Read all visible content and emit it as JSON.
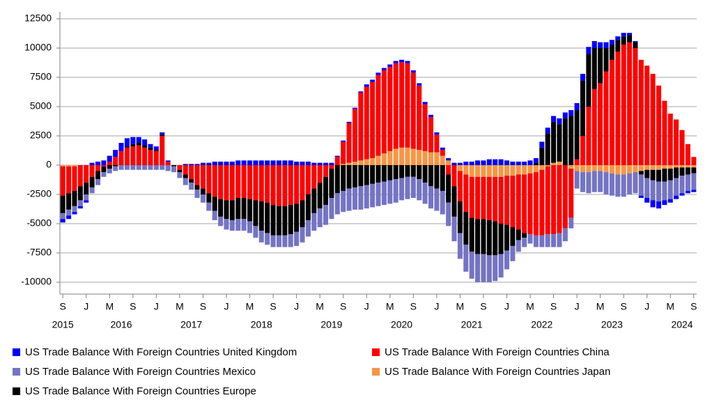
{
  "chart_data": {
    "type": "stacked-bar",
    "x": [
      "2015-09",
      "2015-10",
      "2015-11",
      "2015-12",
      "2016-01",
      "2016-02",
      "2016-03",
      "2016-04",
      "2016-05",
      "2016-06",
      "2016-07",
      "2016-08",
      "2016-09",
      "2016-10",
      "2016-11",
      "2016-12",
      "2017-01",
      "2017-02",
      "2017-03",
      "2017-04",
      "2017-05",
      "2017-06",
      "2017-07",
      "2017-08",
      "2017-09",
      "2017-10",
      "2017-11",
      "2017-12",
      "2018-01",
      "2018-02",
      "2018-03",
      "2018-04",
      "2018-05",
      "2018-06",
      "2018-07",
      "2018-08",
      "2018-09",
      "2018-10",
      "2018-11",
      "2018-12",
      "2019-01",
      "2019-02",
      "2019-03",
      "2019-04",
      "2019-05",
      "2019-06",
      "2019-07",
      "2019-08",
      "2019-09",
      "2019-10",
      "2019-11",
      "2019-12",
      "2020-01",
      "2020-02",
      "2020-03",
      "2020-04",
      "2020-05",
      "2020-06",
      "2020-07",
      "2020-08",
      "2020-09",
      "2020-10",
      "2020-11",
      "2020-12",
      "2021-01",
      "2021-02",
      "2021-03",
      "2021-04",
      "2021-05",
      "2021-06",
      "2021-07",
      "2021-08",
      "2021-09",
      "2021-10",
      "2021-11",
      "2021-12",
      "2022-01",
      "2022-02",
      "2022-03",
      "2022-04",
      "2022-05",
      "2022-06",
      "2022-07",
      "2022-08",
      "2022-09",
      "2022-10",
      "2022-11",
      "2022-12",
      "2023-01",
      "2023-02",
      "2023-03",
      "2023-04",
      "2023-05",
      "2023-06",
      "2023-07",
      "2023-08",
      "2023-09",
      "2023-10",
      "2023-11",
      "2023-12",
      "2024-01",
      "2024-02",
      "2024-03",
      "2024-04",
      "2024-05",
      "2024-06",
      "2024-07",
      "2024-08",
      "2024-09"
    ],
    "series": [
      {
        "name": "US Trade Balance With Foreign Countries United Kingdom",
        "color": "#0000ff",
        "values": [
          -300,
          -300,
          -200,
          -200,
          -200,
          200,
          300,
          400,
          500,
          600,
          700,
          700,
          600,
          500,
          500,
          300,
          300,
          200,
          100,
          0,
          0,
          100,
          100,
          100,
          200,
          200,
          300,
          300,
          300,
          300,
          400,
          400,
          400,
          400,
          400,
          400,
          400,
          400,
          400,
          400,
          300,
          300,
          300,
          200,
          200,
          200,
          200,
          100,
          100,
          100,
          100,
          100,
          200,
          200,
          200,
          200,
          200,
          200,
          200,
          200,
          200,
          200,
          200,
          200,
          200,
          200,
          200,
          200,
          200,
          300,
          300,
          400,
          400,
          500,
          500,
          500,
          400,
          300,
          300,
          300,
          400,
          400,
          500,
          500,
          500,
          500,
          500,
          500,
          600,
          600,
          600,
          600,
          500,
          500,
          400,
          300,
          300,
          200,
          100,
          -200,
          -400,
          -600,
          -600,
          -400,
          -300,
          -300,
          -200,
          -200,
          -200
        ]
      },
      {
        "name": "US Trade Balance With Foreign Countries China",
        "color": "#ff0000",
        "values": [
          -2500,
          -2300,
          -2100,
          -1800,
          -1500,
          -1000,
          -500,
          -100,
          300,
          700,
          1200,
          1500,
          1600,
          1700,
          1500,
          1300,
          1200,
          2500,
          300,
          0,
          -400,
          -800,
          -1200,
          -1700,
          -2000,
          -2400,
          -2700,
          -2900,
          -3000,
          -3000,
          -2800,
          -2800,
          -2900,
          -3000,
          -3100,
          -3200,
          -3400,
          -3500,
          -3500,
          -3400,
          -3300,
          -3000,
          -2500,
          -2000,
          -1500,
          -1000,
          -300,
          700,
          1900,
          3400,
          4500,
          5800,
          6200,
          6500,
          6900,
          7100,
          7200,
          7300,
          7300,
          7200,
          6500,
          5500,
          4000,
          3000,
          1500,
          500,
          -800,
          -1800,
          -2600,
          -3200,
          -3500,
          -3600,
          -3600,
          -3700,
          -3800,
          -4000,
          -4200,
          -4400,
          -4700,
          -5000,
          -5200,
          -5400,
          -5600,
          -5800,
          -5900,
          -5800,
          -5400,
          -4200,
          500,
          2500,
          5000,
          6500,
          7000,
          8000,
          9000,
          9700,
          10300,
          10500,
          10000,
          9000,
          8500,
          7800,
          6800,
          5500,
          4400,
          3900,
          3000,
          1800,
          700
        ]
      },
      {
        "name": "US Trade Balance With Foreign Countries Mexico",
        "color": "#7474c4",
        "values": [
          -500,
          -500,
          -500,
          -500,
          -500,
          -500,
          -500,
          -400,
          -400,
          -400,
          -400,
          -400,
          -400,
          -400,
          -400,
          -400,
          -400,
          -400,
          -500,
          -500,
          -500,
          -600,
          -600,
          -700,
          -700,
          -700,
          -800,
          -800,
          -900,
          -900,
          -1000,
          -1000,
          -1000,
          -1000,
          -1000,
          -1000,
          -1000,
          -1000,
          -1000,
          -1100,
          -1200,
          -1300,
          -1400,
          -1500,
          -1600,
          -1700,
          -1800,
          -1800,
          -1800,
          -1900,
          -1900,
          -2000,
          -2000,
          -2000,
          -2000,
          -2000,
          -2000,
          -2000,
          -1900,
          -1900,
          -1800,
          -1800,
          -1800,
          -1900,
          -1900,
          -2000,
          -2000,
          -2100,
          -2200,
          -2300,
          -2300,
          -2400,
          -2400,
          -2300,
          -2200,
          -2000,
          -1600,
          -1300,
          -1000,
          -800,
          -800,
          -1000,
          -1000,
          -1100,
          -1100,
          -1200,
          -1100,
          -900,
          -1500,
          -1700,
          -1800,
          -1800,
          -1800,
          -1900,
          -1900,
          -1900,
          -1900,
          -1800,
          -1800,
          -1800,
          -1700,
          -1700,
          -1700,
          -1600,
          -1600,
          -1500,
          -1500,
          -1400,
          -1400
        ]
      },
      {
        "name": "US Trade Balance With Foreign Countries Japan",
        "color": "#f79646",
        "values": [
          -100,
          -100,
          -100,
          0,
          0,
          0,
          0,
          0,
          0,
          0,
          0,
          0,
          0,
          0,
          0,
          0,
          0,
          0,
          0,
          0,
          0,
          0,
          0,
          0,
          0,
          0,
          0,
          0,
          0,
          0,
          0,
          0,
          0,
          0,
          0,
          0,
          0,
          0,
          0,
          0,
          0,
          0,
          0,
          0,
          0,
          0,
          0,
          0,
          100,
          200,
          300,
          400,
          500,
          600,
          800,
          1000,
          1200,
          1400,
          1500,
          1500,
          1400,
          1300,
          1200,
          1100,
          1100,
          800,
          400,
          0,
          -500,
          -800,
          -1000,
          -1000,
          -1000,
          -1000,
          -1000,
          -1000,
          -900,
          -900,
          -800,
          -800,
          -700,
          -600,
          -400,
          -100,
          200,
          300,
          0,
          -300,
          -500,
          -600,
          -600,
          -500,
          -500,
          -600,
          -700,
          -800,
          -800,
          -700,
          -600,
          -500,
          -400,
          -400,
          -400,
          -300,
          -300,
          -200,
          -200,
          -200,
          -200
        ]
      },
      {
        "name": "US Trade Balance With Foreign Countries Europe",
        "color": "#000000",
        "values": [
          -1500,
          -1400,
          -1300,
          -1200,
          -1000,
          -900,
          -700,
          -500,
          -300,
          -100,
          0,
          100,
          200,
          200,
          200,
          200,
          100,
          100,
          0,
          -100,
          -200,
          -300,
          -300,
          -400,
          -500,
          -800,
          -1200,
          -1500,
          -1600,
          -1700,
          -1800,
          -1800,
          -1900,
          -2200,
          -2500,
          -2600,
          -2600,
          -2500,
          -2500,
          -2500,
          -2400,
          -2300,
          -2200,
          -2100,
          -2200,
          -2400,
          -2500,
          -2400,
          -2200,
          -2000,
          -1900,
          -1800,
          -1700,
          -1600,
          -1500,
          -1400,
          -1300,
          -1200,
          -1100,
          -1000,
          -1000,
          -1200,
          -1500,
          -1800,
          -2000,
          -2200,
          -2400,
          -2600,
          -2700,
          -2800,
          -2900,
          -3000,
          -3000,
          -3000,
          -2900,
          -2600,
          -2200,
          -1600,
          -900,
          -400,
          0,
          200,
          1500,
          2700,
          3500,
          3200,
          4000,
          4200,
          4200,
          4700,
          4500,
          3500,
          3000,
          2000,
          1300,
          1000,
          700,
          600,
          500,
          -300,
          -700,
          -900,
          -1000,
          -1100,
          -1000,
          -900,
          -700,
          -600,
          -500
        ]
      }
    ],
    "ylim": [
      -10000,
      12500
    ],
    "yticks": [
      -10000,
      -7500,
      -5000,
      -2500,
      0,
      2500,
      5000,
      7500,
      10000,
      12500
    ],
    "xticks": [
      {
        "value": "2015-09",
        "label": "S"
      },
      {
        "value": "2016-01",
        "label": "J"
      },
      {
        "value": "2016-05",
        "label": "M"
      },
      {
        "value": "2016-09",
        "label": "S"
      },
      {
        "value": "2017-01",
        "label": "J"
      },
      {
        "value": "2017-05",
        "label": "M"
      },
      {
        "value": "2017-09",
        "label": "S"
      },
      {
        "value": "2018-01",
        "label": "J"
      },
      {
        "value": "2018-05",
        "label": "M"
      },
      {
        "value": "2018-09",
        "label": "S"
      },
      {
        "value": "2019-01",
        "label": "J"
      },
      {
        "value": "2019-05",
        "label": "M"
      },
      {
        "value": "2019-09",
        "label": "S"
      },
      {
        "value": "2020-01",
        "label": "J"
      },
      {
        "value": "2020-05",
        "label": "M"
      },
      {
        "value": "2020-09",
        "label": "S"
      },
      {
        "value": "2021-01",
        "label": "J"
      },
      {
        "value": "2021-05",
        "label": "M"
      },
      {
        "value": "2021-09",
        "label": "S"
      },
      {
        "value": "2022-01",
        "label": "J"
      },
      {
        "value": "2022-05",
        "label": "M"
      },
      {
        "value": "2022-09",
        "label": "S"
      },
      {
        "value": "2023-01",
        "label": "J"
      },
      {
        "value": "2023-05",
        "label": "M"
      },
      {
        "value": "2023-09",
        "label": "S"
      },
      {
        "value": "2024-01",
        "label": "J"
      },
      {
        "value": "2024-05",
        "label": "M"
      },
      {
        "value": "2024-09",
        "label": "S"
      }
    ],
    "xticks_year": [
      {
        "value": "2015-09",
        "label": "2015"
      },
      {
        "value": "2016-07",
        "label": "2016"
      },
      {
        "value": "2017-07",
        "label": "2017"
      },
      {
        "value": "2018-07",
        "label": "2018"
      },
      {
        "value": "2019-07",
        "label": "2019"
      },
      {
        "value": "2020-07",
        "label": "2020"
      },
      {
        "value": "2021-07",
        "label": "2021"
      },
      {
        "value": "2022-07",
        "label": "2022"
      },
      {
        "value": "2023-07",
        "label": "2023"
      },
      {
        "value": "2024-07",
        "label": "2024"
      }
    ],
    "grid": true,
    "legend": "bottom"
  }
}
